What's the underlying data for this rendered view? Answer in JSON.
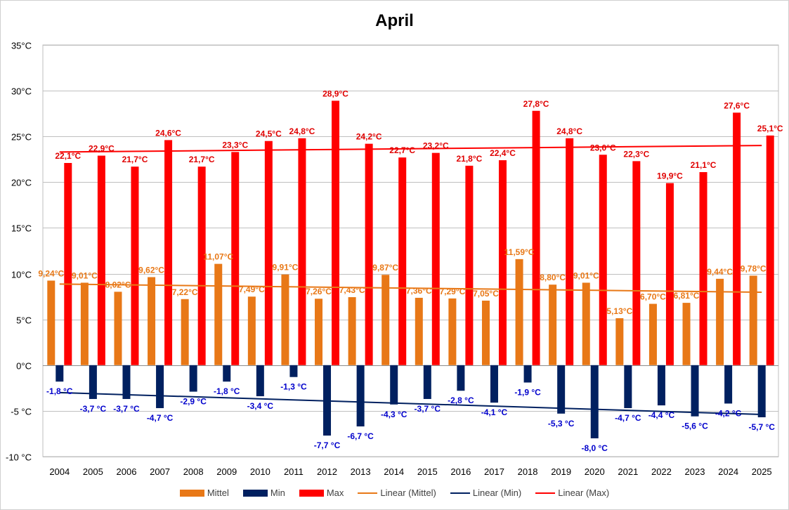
{
  "chart_data": {
    "type": "bar",
    "title": "April",
    "categories": [
      "2004",
      "2005",
      "2006",
      "2007",
      "2008",
      "2009",
      "2010",
      "2011",
      "2012",
      "2013",
      "2014",
      "2015",
      "2016",
      "2017",
      "2018",
      "2019",
      "2020",
      "2021",
      "2022",
      "2023",
      "2024",
      "2025"
    ],
    "ylim": [
      -10,
      35
    ],
    "yticks": [
      -10,
      -5,
      0,
      5,
      10,
      15,
      20,
      25,
      30,
      35
    ],
    "ytick_labels": [
      "-10 °C",
      "-5 °C",
      "0°C",
      "5°C",
      "10°C",
      "15°C",
      "20°C",
      "25°C",
      "30°C",
      "35°C"
    ],
    "grid": true,
    "legend_position": "bottom",
    "series": [
      {
        "name": "Mittel",
        "color": "#E87817",
        "values": [
          9.24,
          9.01,
          8.02,
          9.62,
          7.22,
          11.07,
          7.49,
          9.91,
          7.26,
          7.43,
          9.87,
          7.36,
          7.29,
          7.05,
          11.59,
          8.8,
          9.01,
          5.13,
          6.7,
          6.81,
          9.44,
          9.78
        ],
        "labels": [
          "9,24°C",
          "9,01°C",
          "8,02°C",
          "9,62°C",
          "7,22°C",
          "11,07°C",
          "7,49°C",
          "9,91°C",
          "7,26°C",
          "7,43°C",
          "9,87°C",
          "7,36°C",
          "7,29°C",
          "7,05°C",
          "11,59°C",
          "8,80°C",
          "9,01°C",
          "5,13°C",
          "6,70°C",
          "6,81°C",
          "9,44°C",
          "9,78°C"
        ]
      },
      {
        "name": "Min",
        "color": "#002060",
        "values": [
          -1.8,
          -3.7,
          -3.7,
          -4.7,
          -2.9,
          -1.8,
          -3.4,
          -1.3,
          -7.7,
          -6.7,
          -4.3,
          -3.7,
          -2.8,
          -4.1,
          -1.9,
          -5.3,
          -8.0,
          -4.7,
          -4.4,
          -5.6,
          -4.2,
          -5.7
        ],
        "labels": [
          "-1,8 °C",
          "-3,7 °C",
          "-3,7 °C",
          "-4,7 °C",
          "-2,9 °C",
          "-1,8 °C",
          "-3,4 °C",
          "-1,3 °C",
          "-7,7 °C",
          "-6,7 °C",
          "-4,3 °C",
          "-3,7 °C",
          "-2,8 °C",
          "-4,1 °C",
          "-1,9 °C",
          "-5,3 °C",
          "-8,0 °C",
          "-4,7 °C",
          "-4,4 °C",
          "-5,6 °C",
          "-4,2 °C",
          "-5,7 °C"
        ]
      },
      {
        "name": "Max",
        "color": "#FF0000",
        "values": [
          22.1,
          22.9,
          21.7,
          24.6,
          21.7,
          23.3,
          24.5,
          24.8,
          28.9,
          24.2,
          22.7,
          23.2,
          21.8,
          22.4,
          27.8,
          24.8,
          23.0,
          22.3,
          19.9,
          21.1,
          27.6,
          25.1
        ],
        "labels": [
          "22,1°C",
          "22,9°C",
          "21,7°C",
          "24,6°C",
          "21,7°C",
          "23,3°C",
          "24,5°C",
          "24,8°C",
          "28,9°C",
          "24,2°C",
          "22,7°C",
          "23,2°C",
          "21,8°C",
          "22,4°C",
          "27,8°C",
          "24,8°C",
          "23,0°C",
          "22,3°C",
          "19,9°C",
          "21,1°C",
          "27,6°C",
          "25,1°C"
        ]
      }
    ],
    "trendlines": [
      {
        "name": "Linear (Mittel)",
        "series": "Mittel",
        "color": "#E87817"
      },
      {
        "name": "Linear (Min)",
        "series": "Min",
        "color": "#002060"
      },
      {
        "name": "Linear (Max)",
        "series": "Max",
        "color": "#FF0000"
      }
    ]
  }
}
